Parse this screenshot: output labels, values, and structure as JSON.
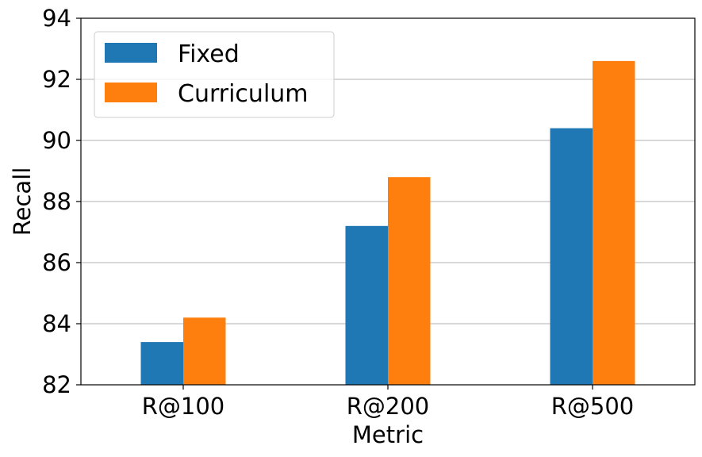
{
  "chart_data": {
    "type": "bar",
    "categories": [
      "R@100",
      "R@200",
      "R@500"
    ],
    "series": [
      {
        "name": "Fixed",
        "values": [
          83.4,
          87.2,
          90.4
        ],
        "color": "#1f77b4"
      },
      {
        "name": "Curriculum",
        "values": [
          84.2,
          88.8,
          92.6
        ],
        "color": "#ff7f0e"
      }
    ],
    "xlabel": "Metric",
    "ylabel": "Recall",
    "ylim": [
      82,
      94
    ],
    "yticks": [
      "82",
      "84",
      "86",
      "88",
      "90",
      "92",
      "94"
    ],
    "grid": "horizontal",
    "legend_position": "top-left"
  }
}
